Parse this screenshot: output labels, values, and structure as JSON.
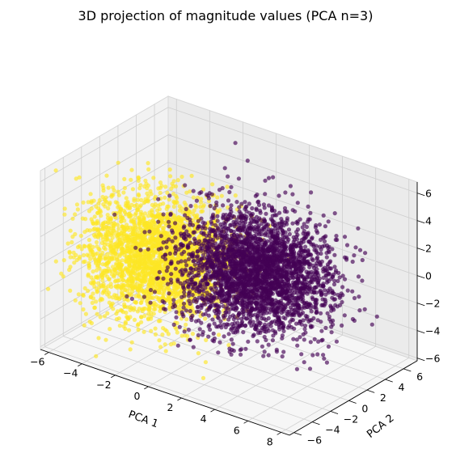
{
  "chart_data": {
    "type": "scatter",
    "projection": "3d",
    "title": "3D projection of magnitude values (PCA n=3)",
    "xlabel": "PCA 1",
    "ylabel": "PCA 2",
    "zlabel": "",
    "xlim": [
      -6.5,
      8.5
    ],
    "ylim": [
      -6.5,
      7.5
    ],
    "zlim": [
      -6.2,
      6.8
    ],
    "xticks": [
      "−6",
      "−4",
      "−2",
      "0",
      "2",
      "4",
      "6",
      "8"
    ],
    "yticks": [
      "−6",
      "−4",
      "−2",
      "0",
      "2",
      "4",
      "6"
    ],
    "zticks": [
      "−6",
      "−4",
      "−2",
      "0",
      "2",
      "4",
      "6"
    ],
    "grid": true,
    "legend": "none",
    "colormap": "viridis",
    "colors": {
      "class_0": "#440154",
      "class_1": "#fde725",
      "pane_left": "#f2f2f2",
      "pane_right": "#ebebeb",
      "pane_floor": "#f6f6f6"
    },
    "series": [
      {
        "class": 1,
        "distribution": "gaussian-cloud",
        "center": [
          -2.5,
          -1.0,
          0.0
        ],
        "spread": [
          1.8,
          2.2,
          2.0
        ],
        "n_points": 2600
      },
      {
        "class": 0,
        "distribution": "gaussian-cloud",
        "center": [
          2.3,
          1.0,
          0.2
        ],
        "spread": [
          2.0,
          2.2,
          1.9
        ],
        "n_points": 3000
      }
    ]
  }
}
